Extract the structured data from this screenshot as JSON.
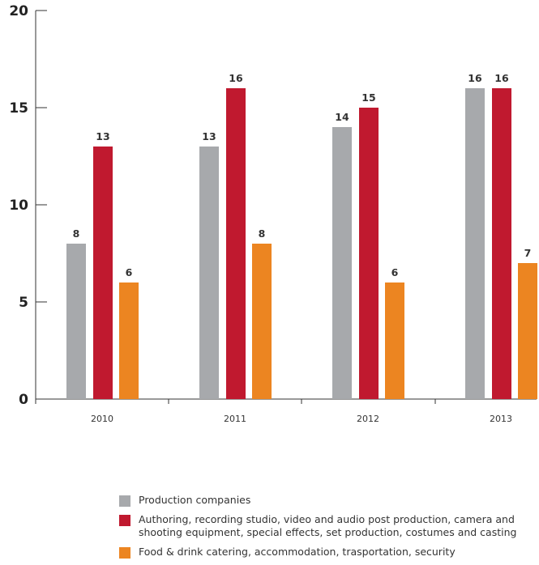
{
  "chart_data": {
    "type": "bar",
    "categories": [
      "2010",
      "2011",
      "2012",
      "2013"
    ],
    "series": [
      {
        "name": "Production companies",
        "color": "#a7a9ac",
        "values": [
          8,
          13,
          14,
          16
        ]
      },
      {
        "name": "Authoring, recording studio, video and audio post production, camera and shooting equipment, special effects, set production, costumes and casting",
        "color": "#c0192f",
        "values": [
          13,
          16,
          15,
          16
        ]
      },
      {
        "name": "Food & drink catering, accommodation, trasportation, security",
        "color": "#ec8521",
        "values": [
          6,
          8,
          6,
          7
        ]
      }
    ],
    "yticks": [
      "0",
      "5",
      "10",
      "15",
      "20"
    ],
    "ylim": [
      0,
      20
    ],
    "title": "",
    "xlabel": "",
    "ylabel": "",
    "grid": false,
    "legend_position": "bottom"
  }
}
